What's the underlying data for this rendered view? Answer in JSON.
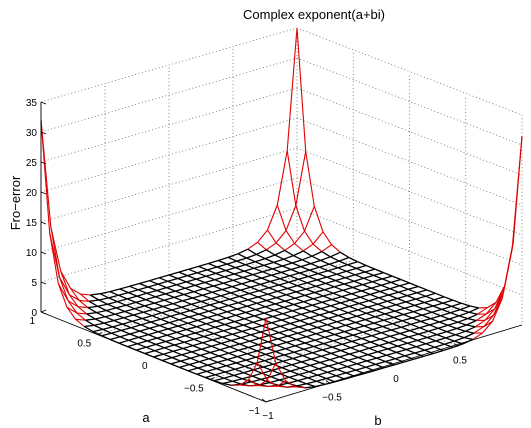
{
  "chart_data": {
    "type": "surface",
    "title": "Complex exponent(a+bi)",
    "xlabel": "a",
    "ylabel": "b",
    "zlabel": "Fro−error",
    "a_ticks": [
      "−1",
      "−0.5",
      "0",
      "0.5",
      "1"
    ],
    "b_ticks": [
      "−1",
      "−0.5",
      "0",
      "0.5"
    ],
    "z_ticks": [
      "0",
      "5",
      "10",
      "15",
      "20",
      "25",
      "30",
      "35"
    ],
    "a_range": [
      -1,
      1
    ],
    "b_range": [
      -1,
      1
    ],
    "z_range": [
      0,
      35
    ],
    "grid": true,
    "mesh_points": 27,
    "corner_values": [
      {
        "a": 1,
        "b": -1,
        "error": 32
      },
      {
        "a": 1,
        "b": 1,
        "error": 35
      },
      {
        "a": -1,
        "b": 1,
        "error": 32
      },
      {
        "a": -1,
        "b": -1,
        "error": 14
      }
    ],
    "low_region_color": "#000000",
    "high_region_color": "#e00000"
  }
}
